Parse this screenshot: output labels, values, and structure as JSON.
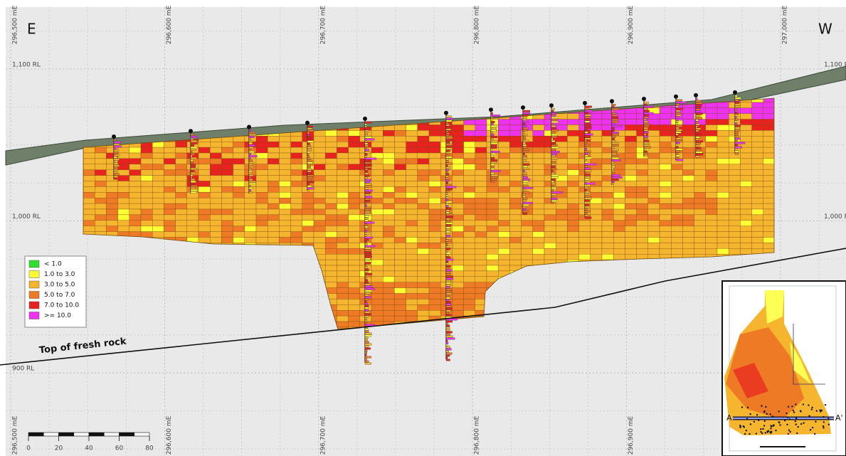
{
  "header": {
    "left_direction": "E",
    "right_direction": "W"
  },
  "eastings": [
    "296,500 mE",
    "296,600 mE",
    "296,700 mE",
    "296,800 mE",
    "296,900 mE",
    "297,000 mE"
  ],
  "elevations": [
    "1,100 RL",
    "1,000 RL",
    "900 RL"
  ],
  "legend": {
    "items": [
      {
        "label": "< 1.0",
        "color": "#2fe02f"
      },
      {
        "label": "1.0 to 3.0",
        "color": "#ffff33"
      },
      {
        "label": "3.0 to 5.0",
        "color": "#f5b52e"
      },
      {
        "label": "5.0 to 7.0",
        "color": "#ee7a25"
      },
      {
        "label": "7.0 to 10.0",
        "color": "#e8221f"
      },
      {
        "label": ">= 10.0",
        "color": "#ee33ee"
      }
    ]
  },
  "annotation": "Top of fresh rock",
  "scale_bar": {
    "labels": [
      "0",
      "20",
      "40",
      "60",
      "80"
    ]
  },
  "inset": {
    "section_start": "A",
    "section_end": "A'"
  }
}
